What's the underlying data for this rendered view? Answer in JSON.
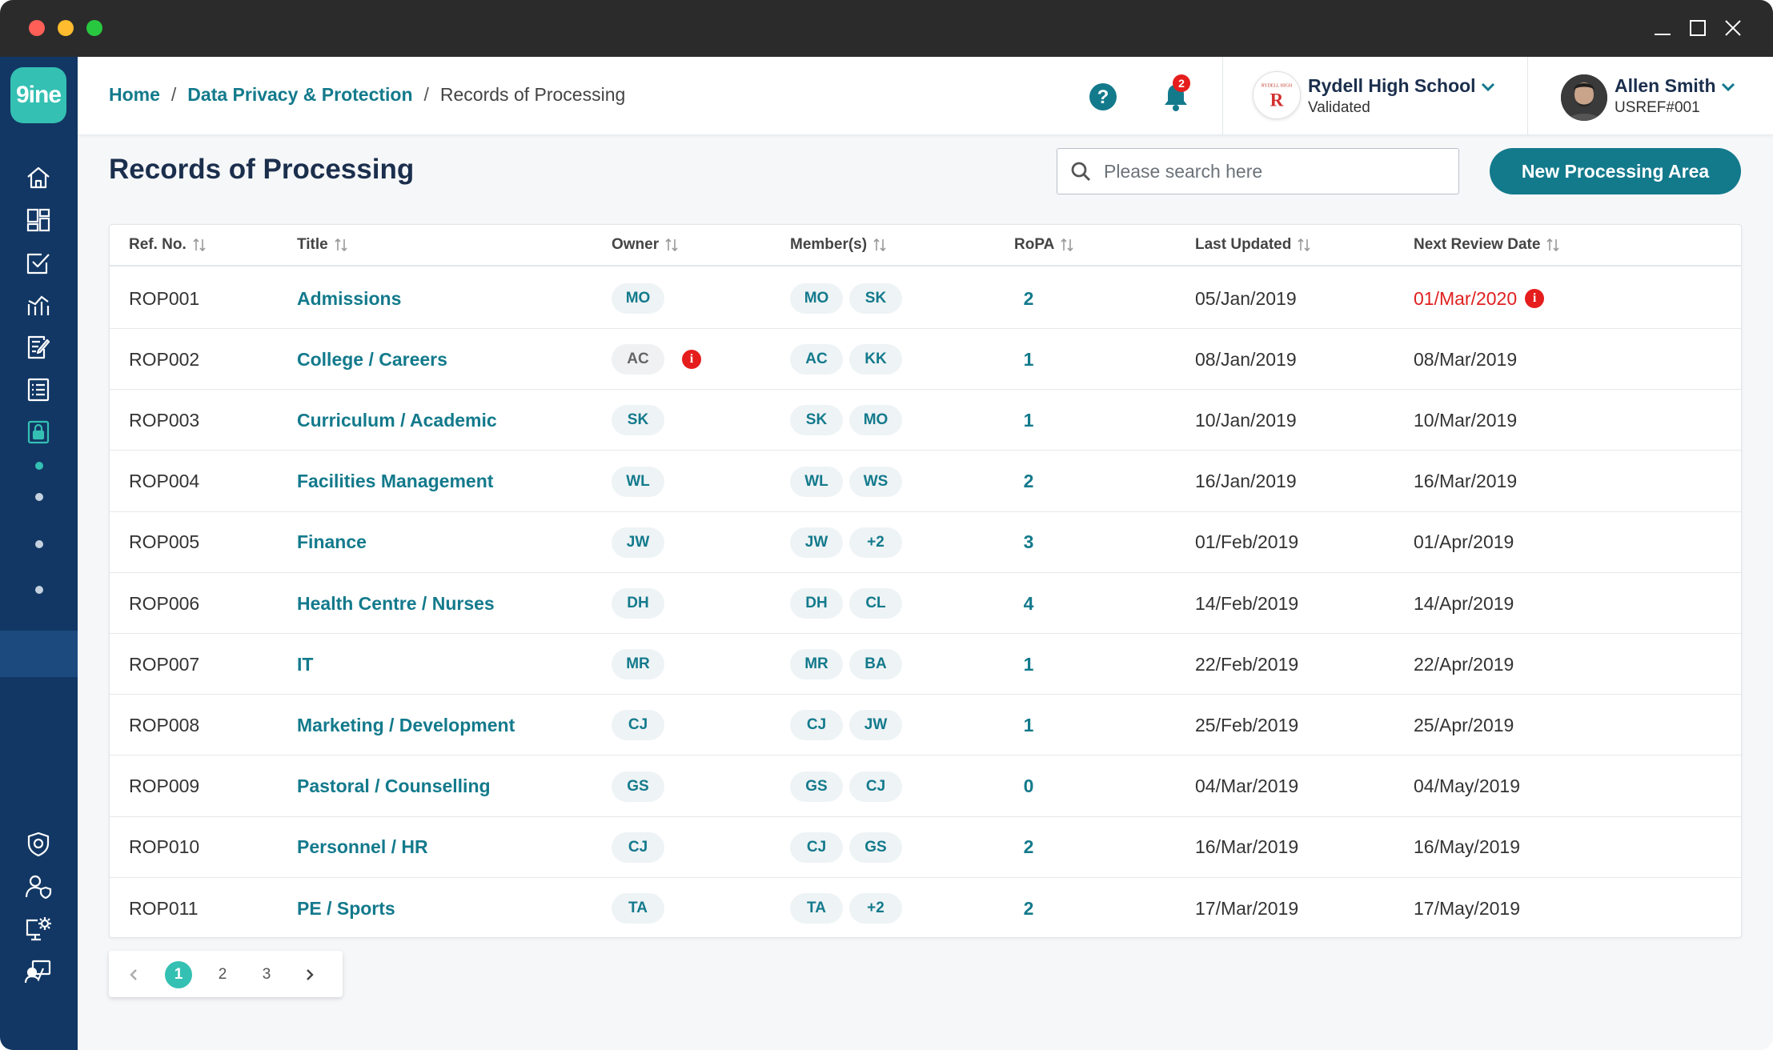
{
  "app": {
    "logo_text": "9ine"
  },
  "breadcrumb": {
    "home": "Home",
    "section": "Data Privacy & Protection",
    "current": "Records of Processing",
    "separator": "/"
  },
  "header": {
    "notification_count": "2",
    "school": {
      "name": "Rydell High School",
      "status": "Validated",
      "logo_letter": "R",
      "logo_caption": "RYDELL HIGH"
    },
    "user": {
      "name": "Allen Smith",
      "ref": "USREF#001"
    }
  },
  "page": {
    "title": "Records of Processing"
  },
  "search": {
    "placeholder": "Please search here"
  },
  "actions": {
    "new_button": "New Processing Area"
  },
  "table": {
    "columns": [
      "Ref. No.",
      "Title",
      "Owner",
      "Member(s)",
      "RoPA",
      "Last Updated",
      "Next Review Date"
    ],
    "rows": [
      {
        "ref": "ROP001",
        "title": "Admissions",
        "owner": "MO",
        "members": [
          "MO",
          "SK"
        ],
        "ropa": "2",
        "updated": "05/Jan/2019",
        "review": "01/Mar/2020",
        "overdue": true
      },
      {
        "ref": "ROP002",
        "title": "College / Careers",
        "owner": "AC",
        "owner_alert": true,
        "members": [
          "AC",
          "KK"
        ],
        "ropa": "1",
        "updated": "08/Jan/2019",
        "review": "08/Mar/2019"
      },
      {
        "ref": "ROP003",
        "title": "Curriculum / Academic",
        "owner": "SK",
        "members": [
          "SK",
          "MO"
        ],
        "ropa": "1",
        "updated": "10/Jan/2019",
        "review": "10/Mar/2019"
      },
      {
        "ref": "ROP004",
        "title": "Facilities Management",
        "owner": "WL",
        "members": [
          "WL",
          "WS"
        ],
        "ropa": "2",
        "updated": "16/Jan/2019",
        "review": "16/Mar/2019"
      },
      {
        "ref": "ROP005",
        "title": "Finance",
        "owner": "JW",
        "members": [
          "JW",
          "+2"
        ],
        "ropa": "3",
        "updated": "01/Feb/2019",
        "review": "01/Apr/2019"
      },
      {
        "ref": "ROP006",
        "title": "Health Centre / Nurses",
        "owner": "DH",
        "members": [
          "DH",
          "CL"
        ],
        "ropa": "4",
        "updated": "14/Feb/2019",
        "review": "14/Apr/2019"
      },
      {
        "ref": "ROP007",
        "title": "IT",
        "owner": "MR",
        "members": [
          "MR",
          "BA"
        ],
        "ropa": "1",
        "updated": "22/Feb/2019",
        "review": "22/Apr/2019"
      },
      {
        "ref": "ROP008",
        "title": "Marketing / Development",
        "owner": "CJ",
        "members": [
          "CJ",
          "JW"
        ],
        "ropa": "1",
        "updated": "25/Feb/2019",
        "review": "25/Apr/2019"
      },
      {
        "ref": "ROP009",
        "title": "Pastoral / Counselling",
        "owner": "GS",
        "members": [
          "GS",
          "CJ"
        ],
        "ropa": "0",
        "updated": "04/Mar/2019",
        "review": "04/May/2019"
      },
      {
        "ref": "ROP010",
        "title": "Personnel / HR",
        "owner": "CJ",
        "members": [
          "CJ",
          "GS"
        ],
        "ropa": "2",
        "updated": "16/Mar/2019",
        "review": "16/May/2019"
      },
      {
        "ref": "ROP011",
        "title": "PE / Sports",
        "owner": "TA",
        "members": [
          "TA",
          "+2"
        ],
        "ropa": "2",
        "updated": "17/Mar/2019",
        "review": "17/May/2019"
      }
    ]
  },
  "pagination": {
    "pages": [
      "1",
      "2",
      "3"
    ],
    "current": "1"
  },
  "colors": {
    "accent": "#137a8c",
    "sidebar": "#123764",
    "brand_teal": "#34c0b3",
    "alert": "#e51d1d"
  },
  "sidebar_icons": [
    "home-icon",
    "dashboard-icon",
    "checklist-icon",
    "analytics-icon",
    "document-edit-icon",
    "list-icon",
    "lock-icon",
    "shield-icon",
    "user-shield-icon",
    "monitor-settings-icon",
    "training-icon"
  ]
}
